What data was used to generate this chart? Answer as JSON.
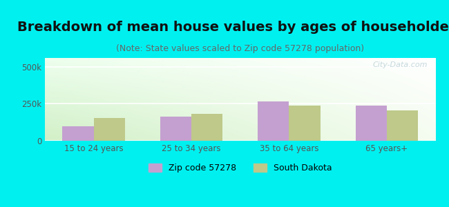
{
  "title": "Breakdown of mean house values by ages of householders",
  "subtitle": "(Note: State values scaled to Zip code 57278 population)",
  "categories": [
    "15 to 24 years",
    "25 to 34 years",
    "35 to 64 years",
    "65 years+"
  ],
  "zip_values": [
    100000,
    162000,
    268000,
    238000
  ],
  "state_values": [
    152000,
    182000,
    238000,
    205000
  ],
  "zip_color": "#c4a0d0",
  "state_color": "#bec98a",
  "ylim": [
    0,
    560000
  ],
  "yticks": [
    0,
    250000,
    500000
  ],
  "ytick_labels": [
    "0",
    "250k",
    "500k"
  ],
  "background_color": "#00f0f0",
  "grad_color_topleft": [
    0.93,
    1.0,
    0.93,
    1.0
  ],
  "grad_color_bottomleft": [
    0.82,
    0.94,
    0.78,
    1.0
  ],
  "grad_color_topright": [
    1.0,
    1.0,
    1.0,
    1.0
  ],
  "legend_zip": "Zip code 57278",
  "legend_state": "South Dakota",
  "bar_width": 0.32,
  "title_fontsize": 14,
  "subtitle_fontsize": 9,
  "watermark": "City-Data.com"
}
